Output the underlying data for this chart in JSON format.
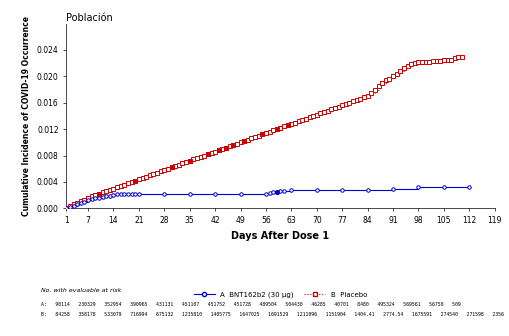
{
  "title": "Población",
  "xlabel": "Days After Dose 1",
  "ylabel": "Cumulative Incidence of COVID-19 Occurrence",
  "xlim": [
    1,
    119
  ],
  "ylim": [
    0,
    0.028
  ],
  "xticks": [
    1,
    7,
    14,
    21,
    28,
    35,
    42,
    49,
    56,
    63,
    70,
    77,
    84,
    91,
    98,
    105,
    112,
    119
  ],
  "yticks": [
    0.0,
    0.004,
    0.008,
    0.012,
    0.016,
    0.02,
    0.024
  ],
  "placebo_x": [
    1,
    2,
    3,
    4,
    5,
    6,
    7,
    8,
    9,
    10,
    11,
    12,
    13,
    14,
    15,
    16,
    17,
    18,
    19,
    20,
    21,
    22,
    23,
    24,
    25,
    26,
    27,
    28,
    29,
    30,
    31,
    32,
    33,
    34,
    35,
    36,
    37,
    38,
    39,
    40,
    41,
    42,
    43,
    44,
    45,
    46,
    47,
    48,
    49,
    50,
    51,
    52,
    53,
    54,
    55,
    56,
    57,
    58,
    59,
    60,
    61,
    62,
    63,
    64,
    65,
    66,
    67,
    68,
    69,
    70,
    71,
    72,
    73,
    74,
    75,
    76,
    77,
    78,
    79,
    80,
    81,
    82,
    83,
    84,
    85,
    86,
    87,
    88,
    89,
    90,
    91,
    92,
    93,
    94,
    95,
    96,
    97,
    98,
    99,
    100,
    101,
    102,
    103,
    104,
    105,
    106,
    107,
    108,
    109,
    110
  ],
  "placebo_y": [
    0.0001,
    0.0003,
    0.0006,
    0.0008,
    0.0011,
    0.0013,
    0.0016,
    0.0018,
    0.002,
    0.0022,
    0.0024,
    0.0026,
    0.0028,
    0.003,
    0.0032,
    0.0034,
    0.0036,
    0.0038,
    0.004,
    0.0042,
    0.0044,
    0.0046,
    0.0048,
    0.005,
    0.0052,
    0.0054,
    0.0056,
    0.0058,
    0.006,
    0.0062,
    0.0064,
    0.0066,
    0.0068,
    0.007,
    0.0072,
    0.0074,
    0.0076,
    0.0078,
    0.008,
    0.0082,
    0.0084,
    0.0086,
    0.0088,
    0.009,
    0.0092,
    0.0094,
    0.0096,
    0.0098,
    0.01,
    0.0102,
    0.0104,
    0.0106,
    0.0108,
    0.011,
    0.0112,
    0.0114,
    0.0116,
    0.0118,
    0.012,
    0.0122,
    0.0124,
    0.0126,
    0.0128,
    0.013,
    0.0132,
    0.0134,
    0.0136,
    0.0138,
    0.014,
    0.0142,
    0.0144,
    0.0146,
    0.0148,
    0.015,
    0.0152,
    0.0154,
    0.0156,
    0.0158,
    0.016,
    0.0162,
    0.0164,
    0.0166,
    0.0168,
    0.017,
    0.0175,
    0.018,
    0.0185,
    0.019,
    0.0194,
    0.0196,
    0.02,
    0.0204,
    0.0208,
    0.0212,
    0.0216,
    0.0218,
    0.022,
    0.0221,
    0.0222,
    0.0222,
    0.0222,
    0.0223,
    0.0223,
    0.0223,
    0.0224,
    0.0224,
    0.0225,
    0.0228,
    0.023,
    0.023
  ],
  "vaccine_x": [
    1,
    2,
    3,
    4,
    5,
    6,
    7,
    8,
    9,
    10,
    11,
    12,
    13,
    14,
    15,
    16,
    17,
    18,
    19,
    20,
    21,
    28,
    35,
    42,
    49,
    56,
    57,
    58,
    59,
    60,
    61,
    63,
    70,
    77,
    84,
    91,
    98,
    105,
    112
  ],
  "vaccine_y": [
    0.0001,
    0.0002,
    0.0004,
    0.0006,
    0.0008,
    0.001,
    0.0012,
    0.0014,
    0.0015,
    0.0016,
    0.0017,
    0.0018,
    0.0019,
    0.002,
    0.0021,
    0.0022,
    0.0022,
    0.0022,
    0.0022,
    0.0022,
    0.0022,
    0.0022,
    0.0022,
    0.0022,
    0.0022,
    0.0022,
    0.0023,
    0.0024,
    0.0025,
    0.0026,
    0.0027,
    0.0028,
    0.0028,
    0.0028,
    0.0028,
    0.003,
    0.0032,
    0.0033,
    0.0033
  ],
  "placebo_filled_x": [
    10,
    20,
    30,
    35,
    40,
    43,
    45,
    47,
    50,
    55,
    59,
    62
  ],
  "vaccine_filled_x": [
    59
  ],
  "placebo_color": "#cc0000",
  "vaccine_color": "#0000cc",
  "note_text": "No. with evaluable at risk",
  "legend_vaccine": "A  BNT162b2 (30 μg)",
  "legend_placebo": "B  Placebo",
  "bottom_note_a": "A:   90114   230329   352954   390965   431131   451107   451752   451728   489504   504430   46285   40701   8480   495324   569561   56750   509",
  "bottom_note_b": "B:   84258   358178   533079   716994   675132   1235810   1405775   1647025   1691529   1211096   1151904   1404.41   2774.54   1675591   274540   271598   2356"
}
